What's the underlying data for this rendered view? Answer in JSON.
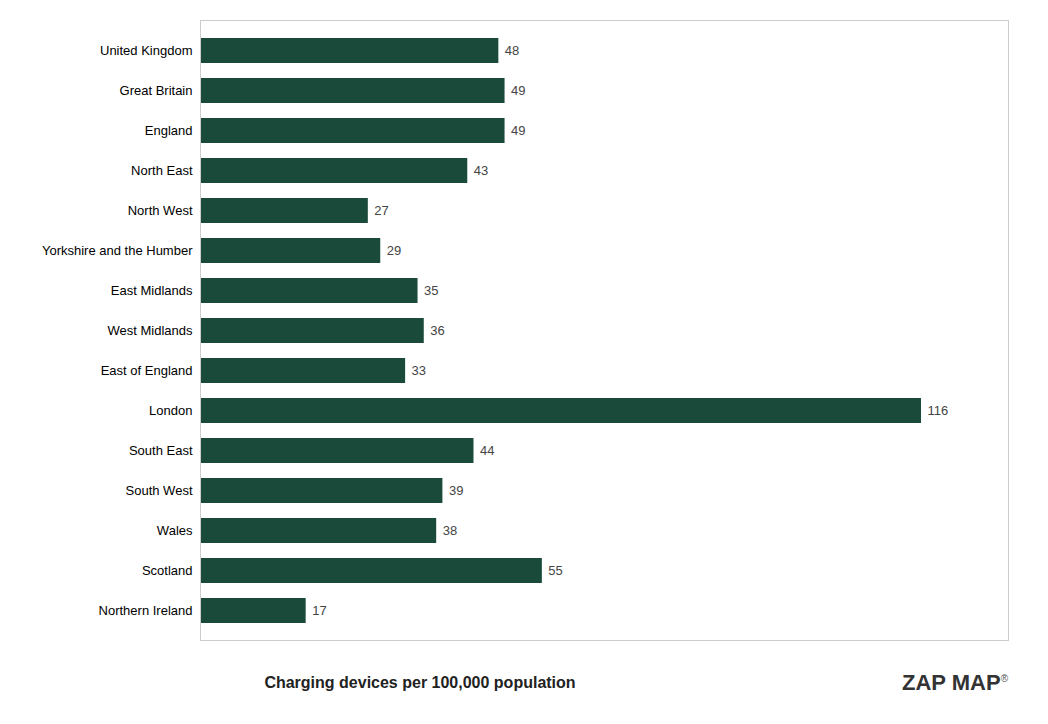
{
  "chart_data": {
    "type": "bar",
    "orientation": "horizontal",
    "categories": [
      "United Kingdom",
      "Great Britain",
      "England",
      "North East",
      "North West",
      "Yorkshire and the Humber",
      "East Midlands",
      "West Midlands",
      "East of England",
      "London",
      "South East",
      "South West",
      "Wales",
      "Scotland",
      "Northern Ireland"
    ],
    "values": [
      48,
      49,
      49,
      43,
      27,
      29,
      35,
      36,
      33,
      116,
      44,
      39,
      38,
      55,
      17
    ],
    "color": "#1a4a3a",
    "xlabel": "Charging devices per 100,000 population",
    "xlim": [
      0,
      130
    ],
    "tick_labels": "y",
    "data_labels": true,
    "grid": false,
    "annotations": [
      "ZAP",
      "MAP",
      "®"
    ]
  }
}
